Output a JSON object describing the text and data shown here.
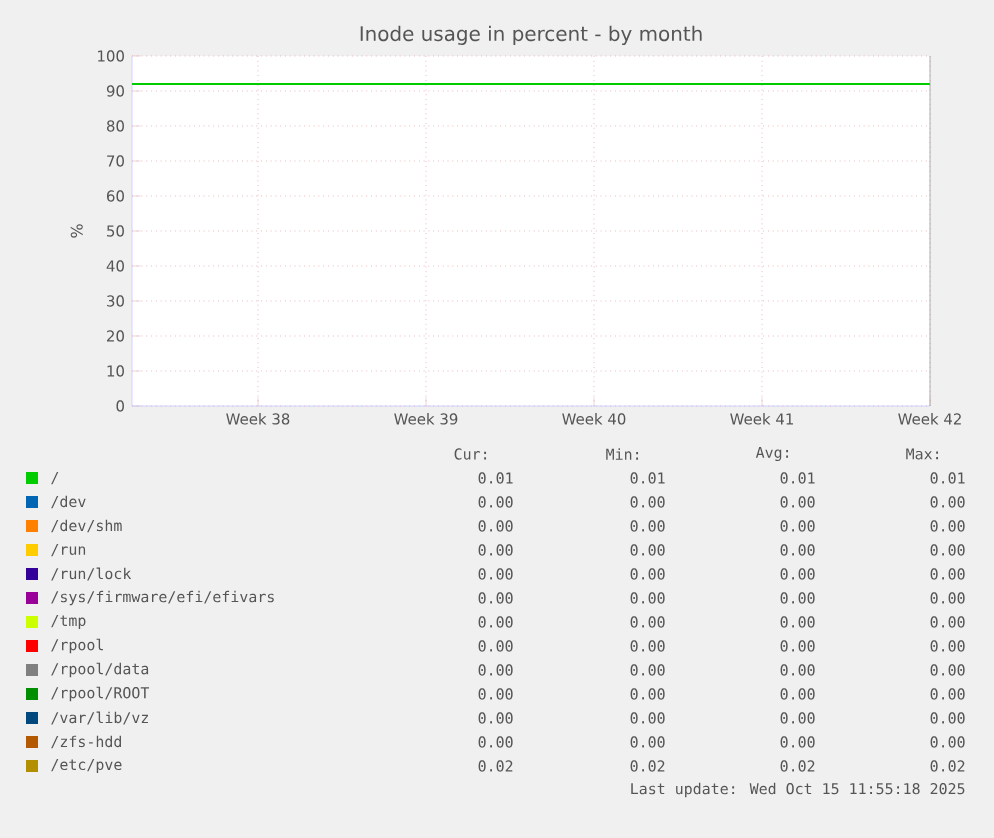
{
  "chart_data": {
    "type": "line",
    "title": "Inode usage in percent - by month",
    "ylabel": "%",
    "x": [
      "2025-09-12T06:00",
      "2025-10-15T12:00"
    ],
    "xlim": [
      "2025-09-12T06:00",
      "2025-10-15T12:00"
    ],
    "xticks": [
      {
        "value": "2025-09-17T12:00",
        "label": "Week 38"
      },
      {
        "value": "2025-09-24T12:00",
        "label": "Week 39"
      },
      {
        "value": "2025-10-01T12:00",
        "label": "Week 40"
      },
      {
        "value": "2025-10-08T12:00",
        "label": "Week 41"
      },
      {
        "value": "2025-10-15T12:00",
        "label": "Week 42"
      }
    ],
    "ylim": [
      0,
      100
    ],
    "yticks": [
      0,
      10,
      20,
      30,
      40,
      50,
      60,
      70,
      80,
      90,
      100
    ],
    "grid": true,
    "legend": "bottom",
    "marker": "none",
    "line_style": "solid",
    "series": [
      {
        "name": "/",
        "color": "#00cc00",
        "values": [
          92,
          92
        ]
      },
      {
        "name": "/dev",
        "color": "#0066b3",
        "values": [
          null,
          null
        ]
      },
      {
        "name": "/dev/shm",
        "color": "#ff8000",
        "values": [
          null,
          null
        ]
      },
      {
        "name": "/run",
        "color": "#ffcc00",
        "values": [
          null,
          null
        ]
      },
      {
        "name": "/run/lock",
        "color": "#330099",
        "values": [
          null,
          null
        ]
      },
      {
        "name": "/sys/firmware/efi/efivars",
        "color": "#990099",
        "values": [
          null,
          null
        ]
      },
      {
        "name": "/tmp",
        "color": "#ccff00",
        "values": [
          null,
          null
        ]
      },
      {
        "name": "/rpool",
        "color": "#ff0000",
        "values": [
          null,
          null
        ]
      },
      {
        "name": "/rpool/data",
        "color": "#808080",
        "values": [
          null,
          null
        ]
      },
      {
        "name": "/rpool/ROOT",
        "color": "#008f00",
        "values": [
          null,
          null
        ]
      },
      {
        "name": "/var/lib/vz",
        "color": "#00487d",
        "values": [
          null,
          null
        ]
      },
      {
        "name": "/zfs-hdd",
        "color": "#b35a00",
        "values": [
          null,
          null
        ]
      },
      {
        "name": "/etc/pve",
        "color": "#b38f00",
        "values": [
          null,
          null
        ]
      }
    ],
    "annotations": [
      "Cur:",
      "Min:",
      "Avg:",
      "Max:",
      "0.01",
      "0.01",
      "0.01",
      "0.01",
      "0.00",
      "0.00",
      "0.00",
      "0.00",
      "0.00",
      "0.00",
      "0.00",
      "0.00",
      "0.00",
      "0.00",
      "0.00",
      "0.00",
      "0.00",
      "0.00",
      "0.00",
      "0.00",
      "0.00",
      "0.00",
      "0.00",
      "0.00",
      "0.00",
      "0.00",
      "0.00",
      "0.00",
      "0.00",
      "0.00",
      "0.00",
      "0.00",
      "0.00",
      "0.00",
      "0.00",
      "0.00",
      "0.00",
      "0.00",
      "0.00",
      "0.00",
      "0.00",
      "0.00",
      "0.00",
      "0.00",
      "0.00",
      "0.00",
      "0.00",
      "0.00",
      "0.02",
      "0.02",
      "0.02",
      "0.02",
      "Last update: Wed Oct 15 11:55:18 2025"
    ]
  }
}
